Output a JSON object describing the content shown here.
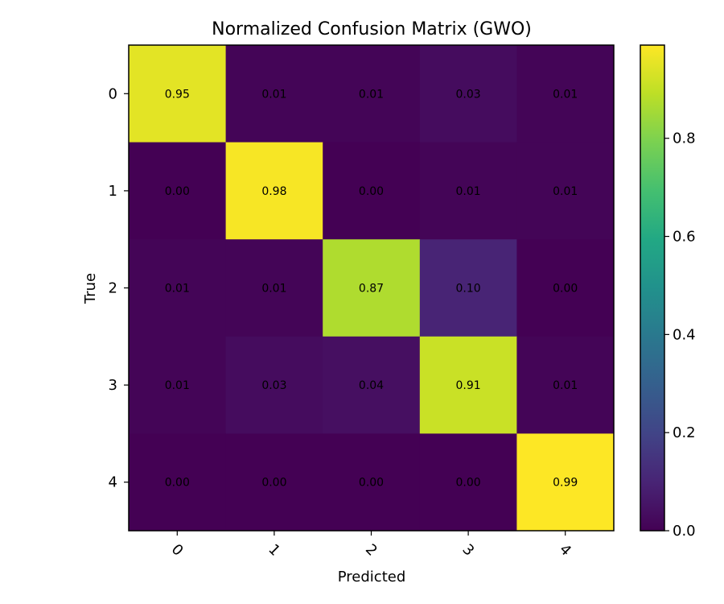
{
  "chart_data": {
    "type": "heatmap",
    "title": "Normalized Confusion Matrix (GWO)",
    "xlabel": "Predicted",
    "ylabel": "True",
    "x_categories": [
      "0",
      "1",
      "2",
      "3",
      "4"
    ],
    "y_categories": [
      "0",
      "1",
      "2",
      "3",
      "4"
    ],
    "matrix": [
      [
        0.95,
        0.01,
        0.01,
        0.03,
        0.01
      ],
      [
        0.0,
        0.98,
        0.0,
        0.01,
        0.01
      ],
      [
        0.01,
        0.01,
        0.87,
        0.1,
        0.0
      ],
      [
        0.01,
        0.03,
        0.04,
        0.91,
        0.01
      ],
      [
        0.0,
        0.0,
        0.0,
        0.0,
        0.99
      ]
    ],
    "cell_labels": [
      [
        "0.95",
        "0.01",
        "0.01",
        "0.03",
        "0.01"
      ],
      [
        "0.00",
        "0.98",
        "0.00",
        "0.01",
        "0.01"
      ],
      [
        "0.01",
        "0.01",
        "0.87",
        "0.10",
        "0.00"
      ],
      [
        "0.01",
        "0.03",
        "0.04",
        "0.91",
        "0.01"
      ],
      [
        "0.00",
        "0.00",
        "0.00",
        "0.00",
        "0.99"
      ]
    ],
    "colormap": "viridis",
    "color_range": [
      0.0,
      0.99
    ],
    "colorbar": {
      "position": "right",
      "ticks": [
        0.0,
        0.2,
        0.4,
        0.6,
        0.8
      ],
      "tick_labels": [
        "0.0",
        "0.2",
        "0.4",
        "0.6",
        "0.8"
      ]
    },
    "grid": false
  }
}
